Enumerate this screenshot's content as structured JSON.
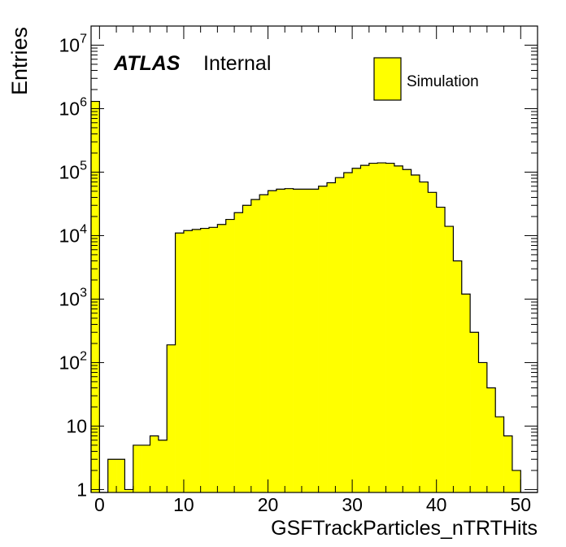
{
  "chart_data": {
    "type": "bar",
    "style": "histogram-step",
    "experiment_label": "ATLAS",
    "status_label": "Internal",
    "xlabel": "GSFTrackParticles_nTRTHits",
    "ylabel": "Entries",
    "xlim": [
      -1,
      52
    ],
    "ylim": [
      0.9,
      20000000
    ],
    "y_scale": "log",
    "grid": false,
    "legend_position": "top-right",
    "x_tick_labels": [
      "0",
      "10",
      "20",
      "30",
      "40",
      "50"
    ],
    "y_tick_labels": [
      {
        "value": 1,
        "mantissa": "1",
        "exp": ""
      },
      {
        "value": 10,
        "mantissa": "10",
        "exp": ""
      },
      {
        "value": 100,
        "mantissa": "10",
        "exp": "2"
      },
      {
        "value": 1000,
        "mantissa": "10",
        "exp": "3"
      },
      {
        "value": 10000,
        "mantissa": "10",
        "exp": "4"
      },
      {
        "value": 100000,
        "mantissa": "10",
        "exp": "5"
      },
      {
        "value": 1000000,
        "mantissa": "10",
        "exp": "6"
      },
      {
        "value": 10000000,
        "mantissa": "10",
        "exp": "7"
      }
    ],
    "series": [
      {
        "name": "Simulation",
        "color": "#ffff00",
        "edge_color": "#000000",
        "bin_low": -1,
        "bin_width": 1,
        "values": [
          1300000,
          0,
          3,
          3,
          1,
          5,
          5,
          7,
          6,
          190,
          11000,
          12000,
          12500,
          13000,
          13500,
          15000,
          18000,
          23000,
          30000,
          37000,
          44000,
          51000,
          54000,
          55000,
          54000,
          54000,
          54000,
          60000,
          68000,
          82000,
          98000,
          115000,
          128000,
          138000,
          140000,
          138000,
          125000,
          110000,
          90000,
          70000,
          48000,
          28000,
          14000,
          4000,
          1200,
          300,
          100,
          40,
          14,
          7,
          2,
          0,
          0
        ]
      }
    ]
  }
}
